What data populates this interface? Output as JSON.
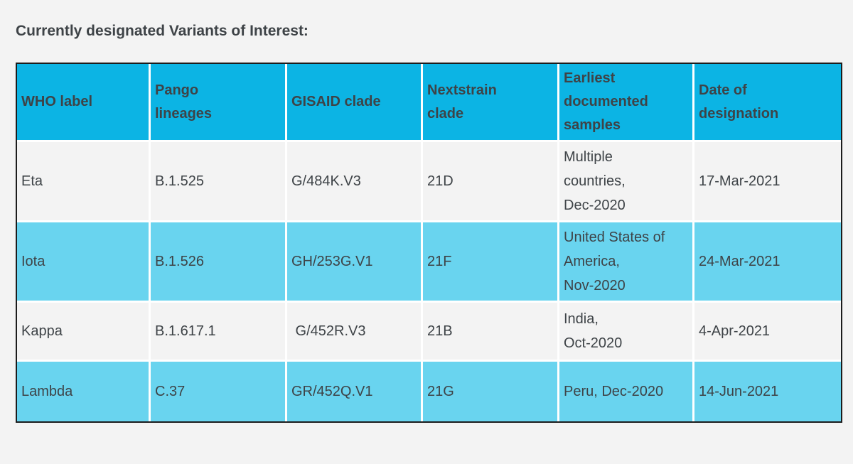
{
  "page": {
    "title": "Currently designated Variants of Interest:"
  },
  "colors": {
    "page_background": "#f3f3f3",
    "header_background": "#0cb4e4",
    "alternate_row_background": "#69d4ef",
    "plain_row_background": "#f3f3f3",
    "text": "#3e4347",
    "table_border": "#1c1c1c",
    "cell_separator": "#ffffff"
  },
  "table": {
    "columns": [
      {
        "key": "who_label",
        "label": "WHO label"
      },
      {
        "key": "pango_lineages",
        "label": "Pango\nlineages"
      },
      {
        "key": "gisaid_clade",
        "label": "GISAID clade"
      },
      {
        "key": "nextstrain_clade",
        "label": "Nextstrain\nclade"
      },
      {
        "key": "earliest_samples",
        "label": "Earliest\ndocumented\nsamples"
      },
      {
        "key": "date_designation",
        "label": "Date of\ndesignation"
      }
    ],
    "rows": [
      {
        "who_label": "Eta",
        "pango_lineages": "B.1.525",
        "gisaid_clade": "G/484K.V3",
        "nextstrain_clade": "21D",
        "earliest_samples": "Multiple\ncountries,\nDec-2020",
        "date_designation": "17-Mar-2021"
      },
      {
        "who_label": "Iota",
        "pango_lineages": "B.1.526",
        "gisaid_clade": "GH/253G.V1",
        "nextstrain_clade": "21F",
        "earliest_samples": "United States of\nAmerica,\nNov-2020",
        "date_designation": "24-Mar-2021"
      },
      {
        "who_label": "Kappa",
        "pango_lineages": "B.1.617.1",
        "gisaid_clade": " G/452R.V3",
        "nextstrain_clade": "21B",
        "earliest_samples": "India,\nOct-2020",
        "date_designation": "4-Apr-2021"
      },
      {
        "who_label": "Lambda",
        "pango_lineages": "C.37",
        "gisaid_clade": "GR/452Q.V1",
        "nextstrain_clade": "21G",
        "earliest_samples": "Peru, Dec-2020",
        "date_designation": "14-Jun-2021"
      }
    ]
  }
}
